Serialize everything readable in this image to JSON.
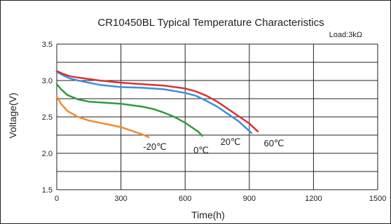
{
  "chart_data": {
    "type": "line",
    "title": "CR10450BL Typical Temperature Characteristics",
    "subtitle": "Load:3kΩ",
    "xlabel": "Time(h)",
    "ylabel": "Voltage(V)",
    "xlim": [
      0,
      1500
    ],
    "ylim": [
      1.5,
      3.5
    ],
    "xticks": [
      0,
      300,
      600,
      900,
      1200,
      1500
    ],
    "yticks": [
      1.5,
      2.0,
      2.5,
      3.0,
      3.5
    ],
    "grid": true,
    "series": [
      {
        "name": "-20℃",
        "color": "#f08a30",
        "x": [
          0,
          20,
          50,
          100,
          150,
          200,
          250,
          300,
          350,
          400,
          430
        ],
        "y": [
          2.78,
          2.68,
          2.58,
          2.5,
          2.45,
          2.42,
          2.39,
          2.36,
          2.31,
          2.26,
          2.22
        ]
      },
      {
        "name": "0℃",
        "color": "#2e9b3a",
        "x": [
          0,
          20,
          50,
          100,
          150,
          200,
          300,
          400,
          450,
          500,
          550,
          600,
          630,
          660,
          680
        ],
        "y": [
          2.95,
          2.88,
          2.8,
          2.74,
          2.71,
          2.7,
          2.68,
          2.64,
          2.61,
          2.56,
          2.5,
          2.42,
          2.36,
          2.3,
          2.24
        ]
      },
      {
        "name": "20℃",
        "color": "#3a8fe0",
        "x": [
          0,
          30,
          60,
          100,
          150,
          200,
          300,
          400,
          500,
          600,
          650,
          700,
          750,
          800,
          850,
          880,
          910
        ],
        "y": [
          3.12,
          3.07,
          3.03,
          3.0,
          2.97,
          2.94,
          2.91,
          2.9,
          2.88,
          2.83,
          2.79,
          2.72,
          2.64,
          2.54,
          2.44,
          2.36,
          2.28
        ]
      },
      {
        "name": "60℃",
        "color": "#e03030",
        "x": [
          0,
          30,
          60,
          100,
          150,
          200,
          300,
          400,
          500,
          600,
          650,
          700,
          750,
          800,
          850,
          900,
          940
        ],
        "y": [
          3.13,
          3.09,
          3.06,
          3.04,
          3.02,
          3.0,
          2.97,
          2.95,
          2.93,
          2.89,
          2.85,
          2.79,
          2.71,
          2.61,
          2.51,
          2.41,
          2.3
        ]
      }
    ]
  }
}
